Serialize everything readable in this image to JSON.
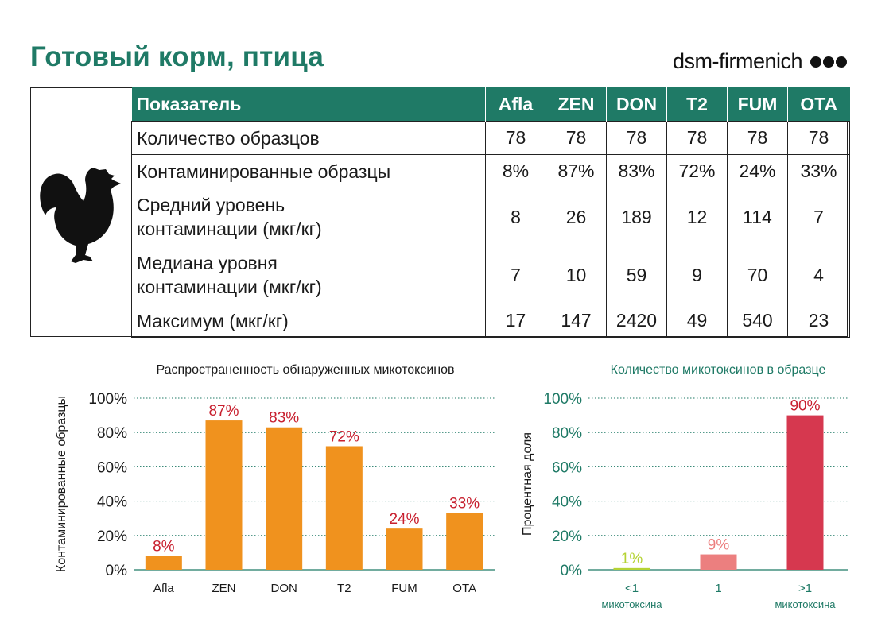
{
  "header": {
    "title": "Готовый корм, птица",
    "brand": "dsm-firmenich"
  },
  "table": {
    "columns": [
      "Показатель",
      "Afla",
      "ZEN",
      "DON",
      "T2",
      "FUM",
      "OTA"
    ],
    "rows": [
      {
        "label": [
          "Количество образцов"
        ],
        "values": [
          "78",
          "78",
          "78",
          "78",
          "78",
          "78"
        ]
      },
      {
        "label": [
          "Контаминированные образцы"
        ],
        "values": [
          "8%",
          "87%",
          "83%",
          "72%",
          "24%",
          "33%"
        ]
      },
      {
        "label": [
          "Средний уровень",
          "контаминации (мкг/кг)"
        ],
        "values": [
          "8",
          "26",
          "189",
          "12",
          "114",
          "7"
        ]
      },
      {
        "label": [
          "Медиана уровня",
          "контаминации (мкг/кг)"
        ],
        "values": [
          "7",
          "10",
          "59",
          "9",
          "70",
          "4"
        ]
      },
      {
        "label": [
          "Максимум (мкг/кг)"
        ],
        "values": [
          "17",
          "147",
          "2420",
          "49",
          "540",
          "23"
        ]
      }
    ]
  },
  "chart_data": [
    {
      "type": "bar",
      "title": "Распространенность обнаруженных микотоксинов",
      "ylabel": "Контаминированные образцы",
      "xlabel": "",
      "categories": [
        "Afla",
        "ZEN",
        "DON",
        "T2",
        "FUM",
        "OTA"
      ],
      "values": [
        8,
        87,
        83,
        72,
        24,
        33
      ],
      "data_labels": [
        "8%",
        "87%",
        "83%",
        "72%",
        "24%",
        "33%"
      ],
      "ylim": [
        0,
        100
      ],
      "yticks": [
        "0%",
        "20%",
        "40%",
        "60%",
        "80%",
        "100%"
      ],
      "grid": true,
      "colors": {
        "bar": "#f0921e",
        "label": "#c8202f",
        "grid": "#1f7a66"
      }
    },
    {
      "type": "bar",
      "title": "Количество микотоксинов в образце",
      "ylabel": "Процентная доля",
      "xlabel": "",
      "categories": [
        [
          "<1",
          "микотоксина"
        ],
        [
          "1"
        ],
        [
          ">1",
          "микотоксина"
        ]
      ],
      "values": [
        1,
        9,
        90
      ],
      "data_labels": [
        "1%",
        "9%",
        "90%"
      ],
      "ylim": [
        0,
        100
      ],
      "yticks": [
        "0%",
        "20%",
        "40%",
        "60%",
        "80%",
        "100%"
      ],
      "grid": true,
      "colors": {
        "bars": [
          "#b5d334",
          "#ec7f7f",
          "#d6384f"
        ],
        "labels": [
          "#b5d334",
          "#ec7f7f",
          "#c8202f"
        ],
        "ticks": "#1f7a66",
        "title": "#1f7a66",
        "grid": "#1f7a66"
      }
    }
  ]
}
